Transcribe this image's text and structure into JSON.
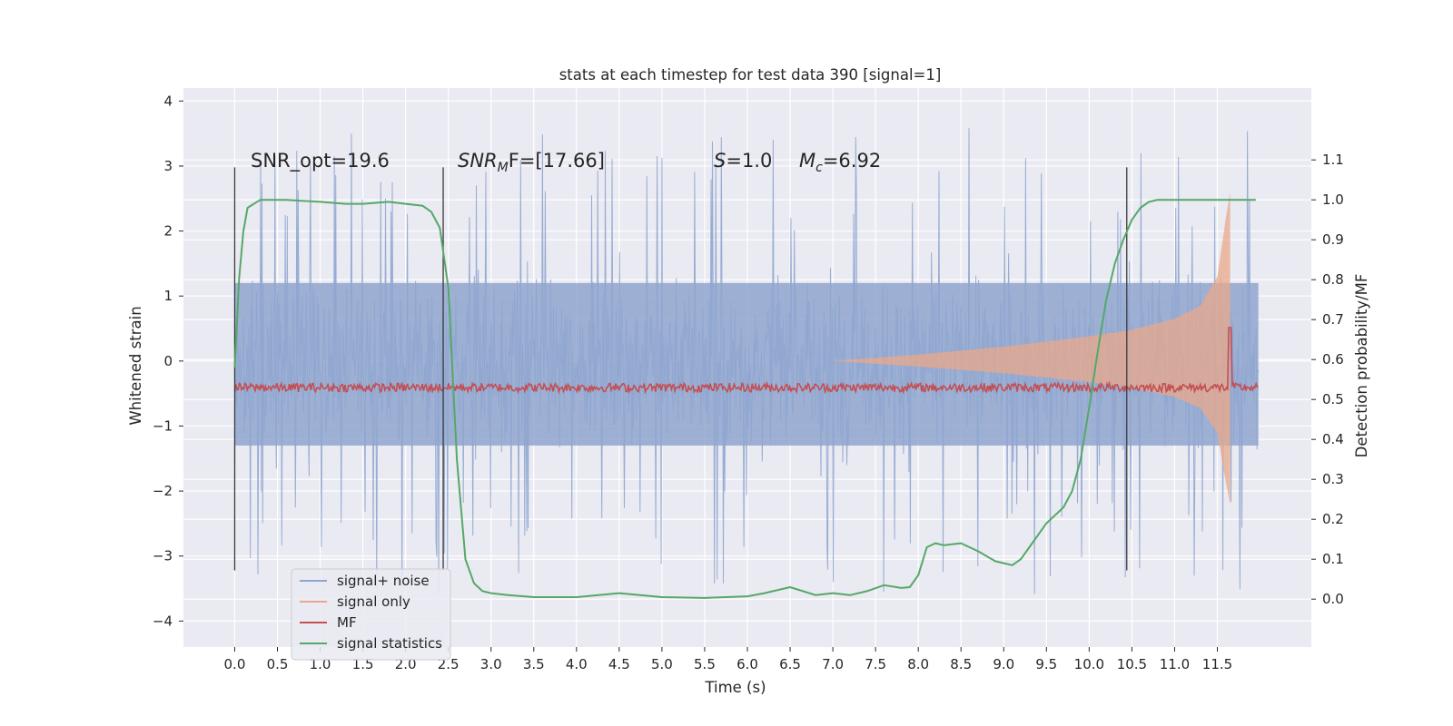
{
  "chart_data": {
    "type": "line",
    "title": "stats at each timestep for test data 390 [signal=1]",
    "xlabel": "Time (s)",
    "ylabel": "Whitened strain",
    "ylabel_right": "Detection probability/MF",
    "xlim": [
      -0.6,
      12.6
    ],
    "ylim": [
      -4.4,
      4.2
    ],
    "ylim_right": [
      -0.12,
      1.28
    ],
    "x_ticks": [
      "0.0",
      "0.5",
      "1.0",
      "1.5",
      "2.0",
      "2.5",
      "3.0",
      "3.5",
      "4.0",
      "4.5",
      "5.0",
      "5.5",
      "6.0",
      "6.5",
      "7.0",
      "7.5",
      "8.0",
      "8.5",
      "9.0",
      "9.5",
      "10.0",
      "10.5",
      "11.0",
      "11.5"
    ],
    "y_ticks": [
      "4",
      "3",
      "2",
      "1",
      "0",
      "−1",
      "−2",
      "−3",
      "−4"
    ],
    "y_ticks_right": [
      "0.0",
      "0.1",
      "0.2",
      "0.3",
      "0.4",
      "0.5",
      "0.6",
      "0.7",
      "0.8",
      "0.9",
      "1.0",
      "1.1"
    ],
    "grid": true,
    "legend_position": "lower-left",
    "annotations": {
      "snr_opt": "SNR_opt=19.6",
      "snr_mf_italic": "SNR",
      "snr_mf_sub": "M",
      "snr_mf_rest": "F=[17.66]",
      "s_sym": "S",
      "s_val": "=1.0",
      "mc_sym": "M",
      "mc_sub": "c",
      "mc_val": "=6.92"
    },
    "vertical_markers_x": [
      0.0,
      2.44,
      10.44
    ],
    "series": [
      {
        "name": "signal+ noise",
        "color": "#8fa6cf",
        "axis": "left",
        "description": "noisy whitened strain, roughly zero-mean, range about -4 to 3.8"
      },
      {
        "name": "signal only",
        "color": "#e9a88a",
        "axis": "left",
        "envelope_x": [
          7.0,
          8.0,
          9.0,
          10.0,
          10.5,
          11.0,
          11.3,
          11.5,
          11.6,
          11.65
        ],
        "envelope_y": [
          0.0,
          0.1,
          0.22,
          0.38,
          0.48,
          0.65,
          0.85,
          1.3,
          2.2,
          2.6
        ]
      },
      {
        "name": "MF",
        "color": "#c44e52",
        "axis": "right",
        "baseline": 0.53,
        "peak_x": 11.65,
        "peak_y": 0.68
      },
      {
        "name": "signal statistics",
        "color": "#55a868",
        "axis": "right",
        "x": [
          0.0,
          0.05,
          0.1,
          0.15,
          0.3,
          0.6,
          1.0,
          1.3,
          1.5,
          1.8,
          2.0,
          2.2,
          2.3,
          2.4,
          2.5,
          2.6,
          2.7,
          2.8,
          2.9,
          3.0,
          3.2,
          3.5,
          4.0,
          4.5,
          5.0,
          5.5,
          6.0,
          6.2,
          6.5,
          6.8,
          7.0,
          7.2,
          7.4,
          7.6,
          7.8,
          7.9,
          8.0,
          8.1,
          8.2,
          8.3,
          8.5,
          8.7,
          8.9,
          9.0,
          9.1,
          9.2,
          9.3,
          9.5,
          9.7,
          9.8,
          9.9,
          10.0,
          10.1,
          10.2,
          10.3,
          10.4,
          10.5,
          10.6,
          10.7,
          10.8,
          11.0,
          11.5,
          11.95
        ],
        "y": [
          0.58,
          0.8,
          0.92,
          0.98,
          1.0,
          1.0,
          0.995,
          0.99,
          0.99,
          0.995,
          0.99,
          0.985,
          0.97,
          0.93,
          0.78,
          0.35,
          0.1,
          0.04,
          0.02,
          0.015,
          0.01,
          0.005,
          0.005,
          0.015,
          0.005,
          0.003,
          0.007,
          0.015,
          0.03,
          0.01,
          0.015,
          0.01,
          0.02,
          0.035,
          0.028,
          0.03,
          0.06,
          0.13,
          0.14,
          0.135,
          0.14,
          0.12,
          0.095,
          0.09,
          0.085,
          0.1,
          0.13,
          0.19,
          0.23,
          0.27,
          0.35,
          0.48,
          0.62,
          0.75,
          0.84,
          0.9,
          0.95,
          0.98,
          0.995,
          1.0,
          1.0,
          1.0,
          1.0
        ]
      }
    ]
  }
}
